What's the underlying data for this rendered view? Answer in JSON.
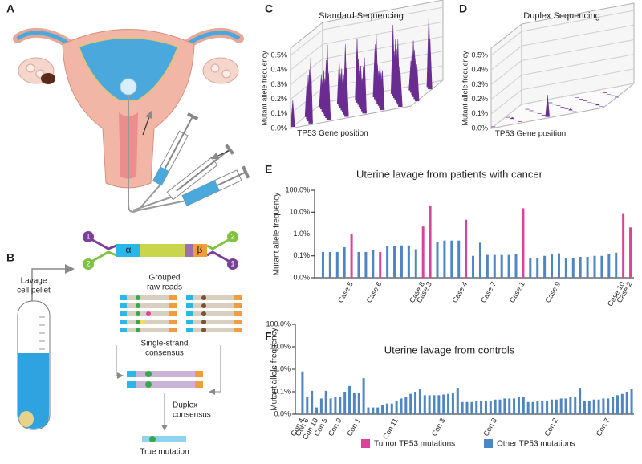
{
  "panel_labels": [
    "A",
    "B",
    "C",
    "D",
    "E",
    "F"
  ],
  "diagram": {
    "lavage_label": [
      "Lavage",
      "cell pellet"
    ],
    "adapter_tags": [
      "1",
      "2",
      "2",
      "1"
    ],
    "alpha": "α",
    "beta": "β",
    "grouped_reads": [
      "Grouped",
      "raw reads"
    ],
    "single_strand": [
      "Single-strand",
      "consensus"
    ],
    "duplex": [
      "Duplex",
      "consensus"
    ],
    "true_mutation": "True mutation"
  },
  "chart_data": [
    {
      "type": "area3d",
      "title": "Standard Sequencing",
      "xlabel": "TP53 Gene position",
      "ylabel": "Mutant allele frequency",
      "color": "#6a2c91",
      "ylim": [
        0,
        0.55
      ],
      "yticks": [
        {
          "value": 0,
          "label": "0.0%"
        },
        {
          "value": 0.1,
          "label": "0.1%"
        },
        {
          "value": 0.2,
          "label": "0.2%"
        },
        {
          "value": 0.3,
          "label": "0.3%"
        },
        {
          "value": 0.4,
          "label": "0.4%"
        },
        {
          "value": 0.5,
          "label": "0.5%"
        }
      ],
      "values": [
        0.18,
        0.25,
        0.22,
        0.3,
        0.2,
        0.35,
        0.28,
        0.45,
        0.24,
        0.3,
        0.38,
        0.22,
        0.5,
        0.27,
        0.32,
        0.2,
        0.42,
        0.26,
        0.3,
        0.48,
        0.23,
        0.33,
        0.28,
        0.36,
        0.21,
        0.44,
        0.3,
        0.25,
        0.38,
        0.22,
        0.47,
        0.29,
        0.31,
        0.24,
        0.4,
        0.27,
        0.35,
        0.2,
        0.43,
        0.3,
        0.26,
        0.37,
        0.23,
        0.32,
        0.5,
        0.28,
        0.34,
        0.25
      ]
    },
    {
      "type": "area3d",
      "title": "Duplex Sequencing",
      "xlabel": "TP53 Gene position",
      "ylabel": "Mutant allele frequency",
      "color": "#6a2c91",
      "ylim": [
        0,
        0.55
      ],
      "yticks": [
        {
          "value": 0,
          "label": "0.0%"
        },
        {
          "value": 0.1,
          "label": "0.1%"
        },
        {
          "value": 0.2,
          "label": "0.2%"
        },
        {
          "value": 0.3,
          "label": "0.3%"
        },
        {
          "value": 0.4,
          "label": "0.4%"
        },
        {
          "value": 0.5,
          "label": "0.5%"
        }
      ],
      "values": [
        0,
        0,
        0,
        0.01,
        0,
        0,
        0,
        0,
        0,
        0,
        0,
        0,
        0,
        0,
        0.15,
        0,
        0,
        0,
        0,
        0.01,
        0,
        0,
        0,
        0,
        0,
        0,
        0.01,
        0,
        0,
        0
      ]
    },
    {
      "type": "bar",
      "title": "Uterine lavage from patients with cancer",
      "ylabel": "Mutant allele frequency",
      "log": true,
      "legend": "bottom",
      "ylim": [
        0.01,
        100
      ],
      "yticks": [
        {
          "value": 0.01,
          "label": "0.0%"
        },
        {
          "value": 0.1,
          "label": "0.1%"
        },
        {
          "value": 1,
          "label": "1.0%"
        },
        {
          "value": 10,
          "label": "10.0%"
        },
        {
          "value": 100,
          "label": "100.0%"
        }
      ],
      "categories": [
        null,
        null,
        null,
        null,
        "Case 5",
        null,
        null,
        null,
        "Case 6",
        null,
        null,
        null,
        null,
        null,
        "Case 8",
        "Case 3",
        null,
        null,
        null,
        null,
        "Case 4",
        null,
        null,
        null,
        "Case 7",
        null,
        null,
        null,
        "Case 1",
        null,
        null,
        null,
        null,
        "Case 9",
        null,
        null,
        null,
        null,
        null,
        null,
        null,
        null,
        "Case 10",
        "Case 2"
      ],
      "series": [
        {
          "name": "Tumor TP53 mutations",
          "color": "#d9449b",
          "values": [
            null,
            null,
            null,
            null,
            1,
            null,
            null,
            null,
            0.15,
            null,
            null,
            null,
            null,
            null,
            2.2,
            20,
            null,
            null,
            null,
            null,
            4.5,
            null,
            null,
            null,
            null,
            null,
            null,
            null,
            15,
            null,
            null,
            null,
            null,
            null,
            null,
            null,
            null,
            null,
            null,
            null,
            null,
            null,
            9,
            2
          ]
        },
        {
          "name": "Other TP53 mutations",
          "color": "#4f86c1",
          "values": [
            0.15,
            0.15,
            0.15,
            0.25,
            null,
            0.15,
            0.15,
            0.18,
            null,
            0.28,
            0.28,
            0.3,
            0.3,
            0.2,
            null,
            null,
            0.45,
            0.5,
            0.5,
            0.5,
            null,
            0.1,
            0.4,
            0.11,
            0.11,
            0.11,
            0.11,
            0.12,
            null,
            0.08,
            0.08,
            0.1,
            0.12,
            0.13,
            0.08,
            0.08,
            0.09,
            0.09,
            0.1,
            0.1,
            0.12,
            0.14,
            null,
            null
          ]
        }
      ]
    },
    {
      "type": "bar",
      "title": "Uterine lavage from controls",
      "ylabel": "Mutant allele frequency",
      "log": true,
      "color": "#4f86c1",
      "ylim": [
        0.01,
        100
      ],
      "yticks": [
        {
          "value": 0.01,
          "label": "0.0%"
        },
        {
          "value": 0.1,
          "label": "0.1%"
        },
        {
          "value": 1,
          "label": "1.0%"
        },
        {
          "value": 10,
          "label": "10.0%"
        },
        {
          "value": 100,
          "label": "100.0%"
        }
      ],
      "categories": [
        "Con 4",
        "Con 6",
        null,
        "Con 10",
        null,
        "Con 5",
        null,
        null,
        "Con 9",
        null,
        null,
        null,
        "Con 1",
        null,
        null,
        null,
        null,
        null,
        null,
        null,
        "Con 11",
        null,
        null,
        null,
        null,
        null,
        null,
        null,
        null,
        null,
        "Con 3",
        null,
        null,
        null,
        null,
        null,
        null,
        null,
        null,
        null,
        null,
        "Con 8",
        null,
        null,
        null,
        null,
        null,
        null,
        null,
        null,
        null,
        null,
        null,
        null,
        "Con 2",
        null,
        null,
        null,
        null,
        null,
        null,
        null,
        null,
        null,
        null,
        "Con 7",
        null,
        null,
        null,
        null,
        null
      ],
      "values": [
        0.8,
        0.06,
        0.11,
        0.02,
        0.05,
        0.11,
        0.05,
        0.06,
        0.06,
        0.1,
        0.18,
        0.09,
        0.09,
        0.4,
        0.02,
        0.02,
        0.02,
        0.025,
        0.03,
        0.03,
        0.04,
        0.05,
        0.06,
        0.08,
        0.1,
        0.13,
        0.07,
        0.07,
        0.07,
        0.07,
        0.075,
        0.08,
        0.09,
        0.15,
        0.035,
        0.035,
        0.035,
        0.04,
        0.04,
        0.04,
        0.04,
        0.045,
        0.045,
        0.05,
        0.05,
        0.05,
        0.06,
        0.06,
        0.035,
        0.035,
        0.04,
        0.04,
        0.04,
        0.045,
        0.045,
        0.05,
        0.05,
        0.06,
        0.06,
        0.15,
        0.04,
        0.04,
        0.045,
        0.045,
        0.05,
        0.05,
        0.06,
        0.07,
        0.08,
        0.1,
        0.13
      ]
    }
  ]
}
